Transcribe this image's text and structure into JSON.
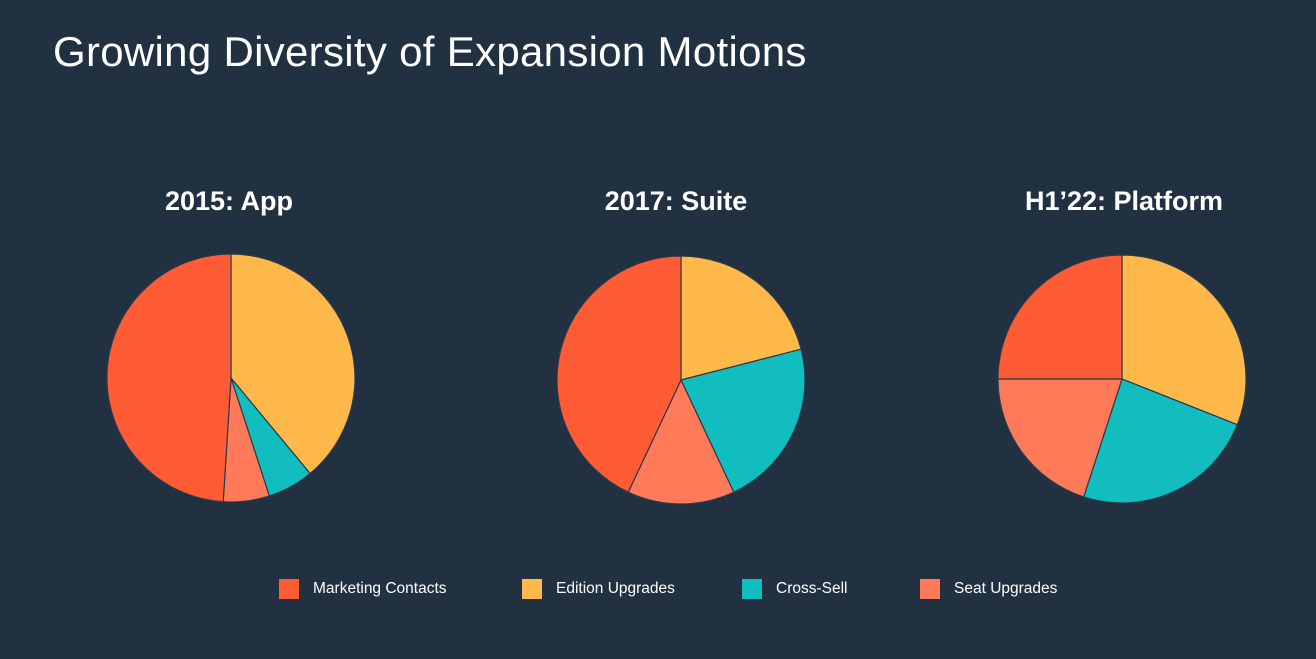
{
  "title": "Growing Diversity of Expansion Motions",
  "chart_data": {
    "type": "pie",
    "legend": {
      "placement": "bottom",
      "entries": [
        {
          "label": "Marketing Contacts",
          "color": "#FF5C35"
        },
        {
          "label": "Edition Upgrades",
          "color": "#FFB94B"
        },
        {
          "label": "Cross-Sell",
          "color": "#12BDBF"
        },
        {
          "label": "Seat Upgrades",
          "color": "#FF7A59"
        }
      ]
    },
    "charts": [
      {
        "title": "2015: App",
        "slices": [
          {
            "label": "Edition Upgrades",
            "value": 39
          },
          {
            "label": "Cross-Sell",
            "value": 6
          },
          {
            "label": "Seat Upgrades",
            "value": 6
          },
          {
            "label": "Marketing Contacts",
            "value": 49
          }
        ]
      },
      {
        "title": "2017: Suite",
        "slices": [
          {
            "label": "Edition Upgrades",
            "value": 21
          },
          {
            "label": "Cross-Sell",
            "value": 22
          },
          {
            "label": "Seat Upgrades",
            "value": 14
          },
          {
            "label": "Marketing Contacts",
            "value": 43
          }
        ]
      },
      {
        "title": "H1’22: Platform",
        "slices": [
          {
            "label": "Edition Upgrades",
            "value": 31
          },
          {
            "label": "Cross-Sell",
            "value": 24
          },
          {
            "label": "Seat Upgrades",
            "value": 20
          },
          {
            "label": "Marketing Contacts",
            "value": 25
          }
        ]
      }
    ]
  }
}
